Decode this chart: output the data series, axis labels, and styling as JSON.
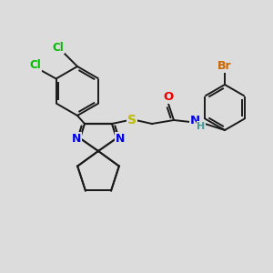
{
  "bg_color": "#dcdcdc",
  "bond_color": "#1a1a1a",
  "atom_colors": {
    "Cl": "#00bb00",
    "N": "#0000ee",
    "S": "#bbbb00",
    "O": "#ee0000",
    "Br": "#cc6600",
    "H": "#449999",
    "C": "#1a1a1a"
  },
  "figsize": [
    3.0,
    3.0
  ],
  "dpi": 100
}
